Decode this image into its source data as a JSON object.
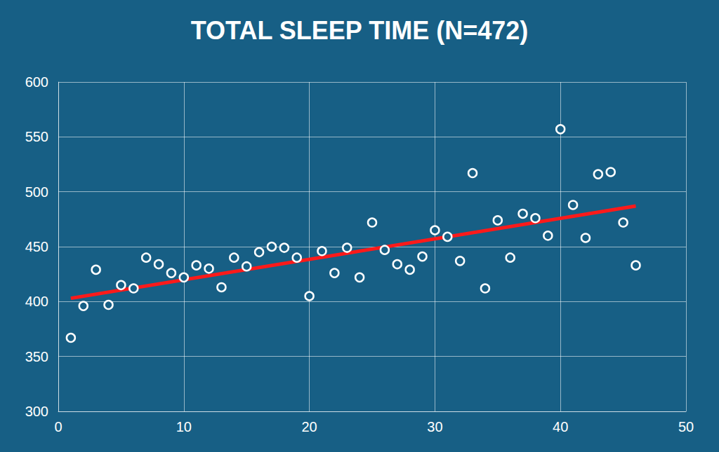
{
  "chart_data": {
    "type": "scatter",
    "title": "TOTAL SLEEP TIME (N=472)",
    "xlim": [
      0,
      50
    ],
    "xticks": [
      0,
      10,
      20,
      30,
      40,
      50
    ],
    "ylim": [
      300,
      600
    ],
    "yticks": [
      300,
      350,
      400,
      450,
      500,
      550,
      600
    ],
    "grid": true,
    "series": [
      {
        "type": "scatter",
        "color": "#ffffff",
        "marker": "circle",
        "x": [
          1,
          2,
          3,
          4,
          5,
          6,
          7,
          8,
          9,
          10,
          11,
          12,
          13,
          14,
          15,
          16,
          17,
          18,
          19,
          20,
          21,
          22,
          23,
          24,
          25,
          26,
          27,
          28,
          29,
          30,
          31,
          32,
          33,
          34,
          35,
          36,
          37,
          38,
          39,
          40,
          41,
          42,
          43,
          44,
          45,
          46
        ],
        "values": [
          367,
          396,
          429,
          397,
          415,
          412,
          440,
          434,
          426,
          422,
          433,
          430,
          413,
          440,
          432,
          445,
          450,
          449,
          440,
          405,
          446,
          426,
          449,
          422,
          472,
          447,
          434,
          429,
          441,
          465,
          459,
          437,
          517,
          412,
          474,
          440,
          480,
          476,
          460,
          557,
          488,
          458,
          516,
          518,
          472,
          433
        ]
      },
      {
        "type": "line",
        "color": "#ff1a1a",
        "line_style": "solid",
        "x": [
          1,
          46
        ],
        "values": [
          403,
          487
        ]
      }
    ]
  }
}
